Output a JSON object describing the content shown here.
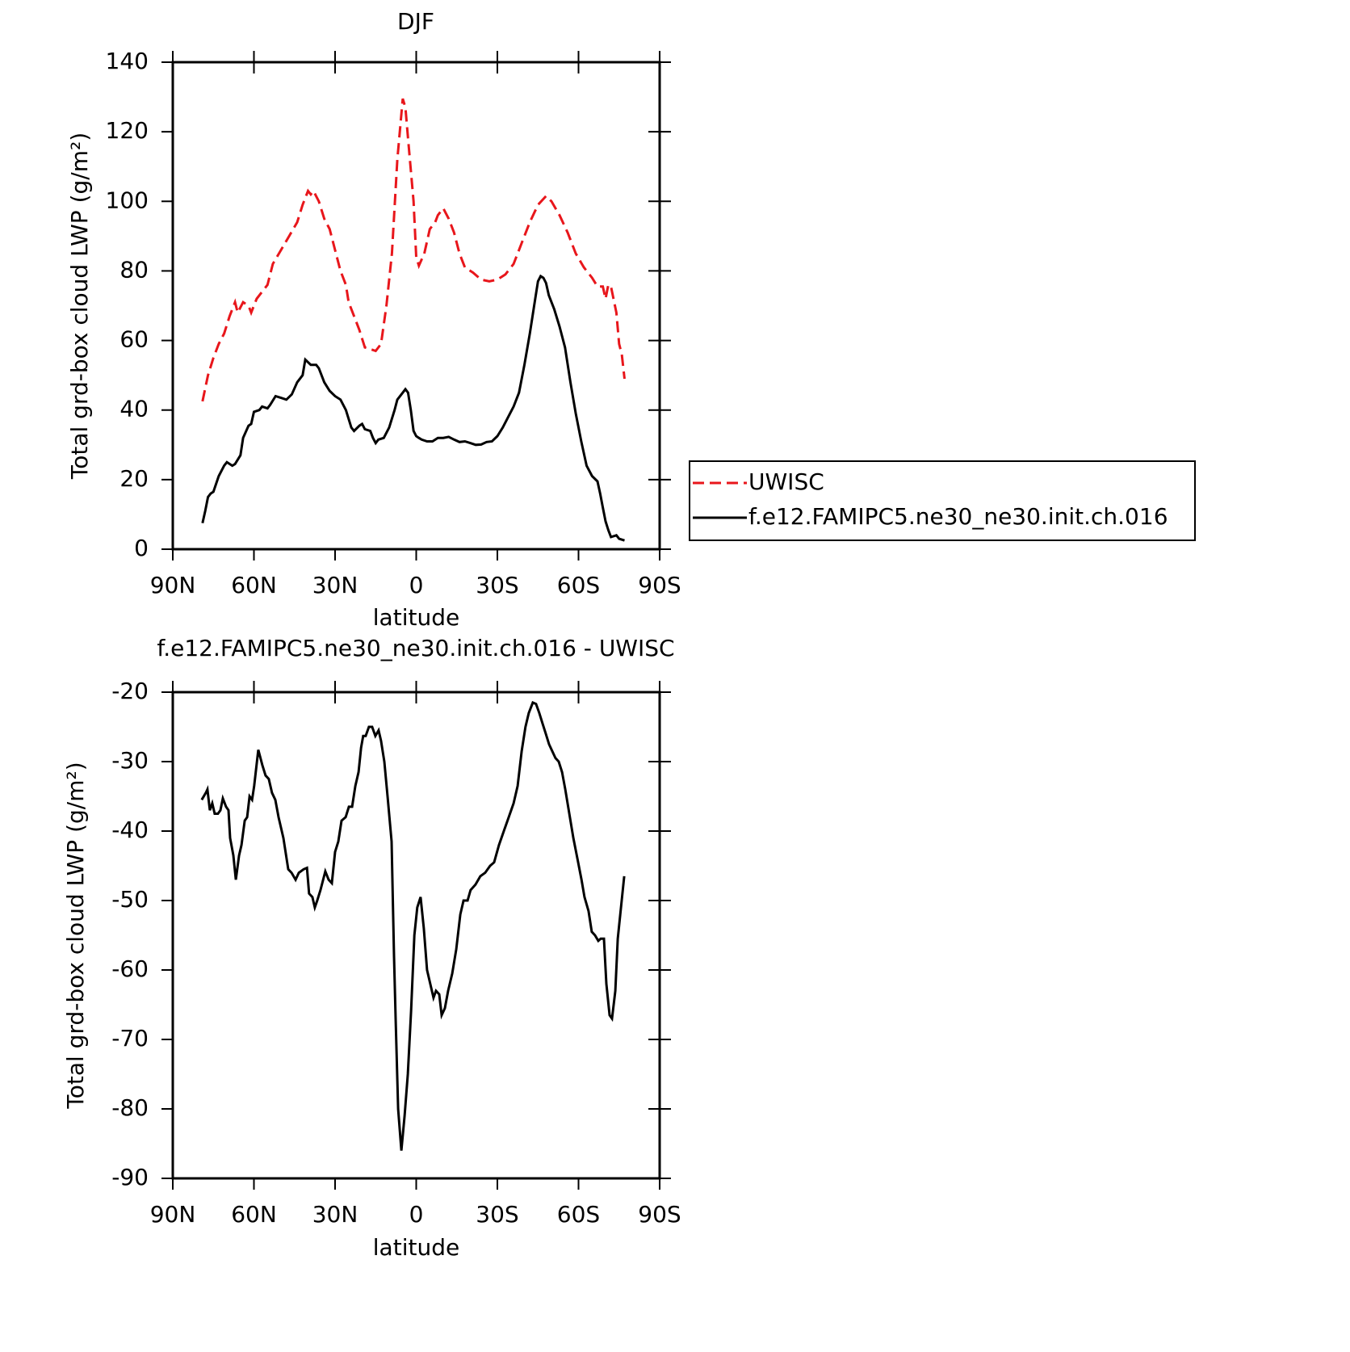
{
  "chart_data": [
    {
      "type": "line",
      "title": "DJF",
      "x_label": "latitude",
      "y_label": "Total grd-box cloud LWP (g/m²)",
      "xlim": [
        90,
        -90
      ],
      "xticks": [
        {
          "value": 90,
          "label": "90N"
        },
        {
          "value": 60,
          "label": "60N"
        },
        {
          "value": 30,
          "label": "30N"
        },
        0,
        {
          "value": -30,
          "label": "30S"
        },
        {
          "value": -60,
          "label": "60S"
        },
        {
          "value": -90,
          "label": "90S"
        }
      ],
      "ylim": [
        0,
        140
      ],
      "yticks": [
        0,
        20,
        40,
        60,
        80,
        100,
        120,
        140
      ],
      "legend": "right",
      "series": [
        {
          "name": "UWISC",
          "color": "#e8161b",
          "linestyle": "dashed",
          "x": [
            79,
            77,
            75,
            73,
            71,
            69,
            67,
            66,
            64,
            62,
            61,
            59,
            57,
            55,
            53,
            50,
            47,
            44,
            42,
            40,
            39,
            38,
            36,
            34,
            32,
            30,
            28,
            26,
            25,
            23,
            21,
            19,
            17,
            15,
            13,
            11,
            9,
            7,
            5,
            4,
            3,
            1,
            0,
            -1,
            -3,
            -5,
            -7,
            -8,
            -10,
            -12,
            -14,
            -16,
            -18,
            -21,
            -24,
            -27,
            -30,
            -33,
            -36,
            -39,
            -42,
            -45,
            -48,
            -50,
            -53,
            -56,
            -59,
            -62,
            -65,
            -67,
            -69,
            -70,
            -71,
            -72,
            -74,
            -75,
            -76,
            -77
          ],
          "values": [
            42.5,
            50,
            55,
            59,
            62,
            67,
            71,
            68,
            71,
            70,
            68,
            72,
            74,
            76,
            82,
            86,
            90,
            94,
            99,
            103,
            102,
            103,
            100,
            95,
            92,
            86,
            80,
            76,
            71,
            67,
            63,
            58,
            57.5,
            57,
            59,
            70,
            85,
            112,
            129.5,
            127,
            118,
            100,
            84,
            81.5,
            85,
            92,
            94,
            96,
            98,
            95,
            91,
            85,
            81,
            79.5,
            77.5,
            77,
            77.5,
            79,
            82,
            88,
            94,
            99,
            101.5,
            100,
            96,
            91,
            85,
            81,
            78,
            75.5,
            75.5,
            72,
            76,
            75.5,
            68,
            59,
            56,
            49
          ]
        },
        {
          "name": "f.e12.FAMIPC5.ne30_ne30.init.ch.016",
          "color": "#000000",
          "linestyle": "solid",
          "x": [
            79,
            78,
            77,
            76,
            75,
            73,
            71,
            70,
            68,
            67,
            65,
            64,
            62,
            61,
            60,
            58,
            57,
            55,
            54,
            52,
            50,
            48,
            46,
            44,
            42,
            41,
            39,
            37,
            36,
            34,
            32,
            30,
            28,
            26,
            24,
            23,
            21,
            20,
            19,
            17,
            16,
            15,
            14,
            12,
            10,
            8,
            7,
            5,
            4,
            3,
            2,
            1,
            0,
            -1,
            -2,
            -4,
            -6,
            -8,
            -10,
            -12,
            -14,
            -16,
            -18,
            -20,
            -22,
            -24,
            -26,
            -28,
            -30,
            -32,
            -34,
            -36,
            -38,
            -40,
            -42,
            -44,
            -45,
            -46,
            -47,
            -48,
            -49,
            -51,
            -53,
            -55,
            -57,
            -59,
            -61,
            -63,
            -65,
            -67,
            -68,
            -69,
            -70,
            -71,
            -72,
            -74,
            -75,
            -77
          ],
          "values": [
            7.5,
            11,
            15,
            16,
            16.5,
            21,
            24,
            25,
            24,
            24.5,
            27,
            32,
            35.5,
            36,
            39.5,
            40,
            41,
            40.5,
            41.5,
            44,
            43.5,
            43,
            44.5,
            48,
            50,
            54.5,
            53,
            53,
            52,
            48,
            45.5,
            44,
            43,
            40,
            35,
            34,
            35.5,
            36,
            34.5,
            34,
            32,
            30.5,
            31.5,
            32,
            35,
            40,
            43,
            45,
            46,
            45,
            40,
            34,
            32.5,
            32,
            31.5,
            31,
            31,
            32,
            32,
            32.3,
            31.5,
            30.8,
            31,
            30.5,
            30,
            30.1,
            30.8,
            31,
            32.5,
            35,
            38,
            41,
            45,
            53,
            62,
            72,
            77,
            78.5,
            78,
            76.5,
            73,
            69,
            64,
            58,
            48,
            39,
            31,
            24,
            21,
            19.5,
            16,
            12,
            8,
            5.5,
            3.5,
            4,
            3,
            2.5
          ]
        }
      ]
    },
    {
      "type": "line",
      "title": "f.e12.FAMIPC5.ne30_ne30.init.ch.016 - UWISC",
      "x_label": "latitude",
      "y_label": "Total grd-box cloud LWP (g/m²)",
      "xlim": [
        90,
        -90
      ],
      "xticks": [
        {
          "value": 90,
          "label": "90N"
        },
        {
          "value": 60,
          "label": "60N"
        },
        {
          "value": 30,
          "label": "30N"
        },
        0,
        {
          "value": -30,
          "label": "30S"
        },
        {
          "value": -60,
          "label": "60S"
        },
        {
          "value": -90,
          "label": "90S"
        }
      ],
      "ylim": [
        -90,
        -20
      ],
      "yticks": [
        -90,
        -80,
        -70,
        -60,
        -50,
        -40,
        -30,
        -20
      ],
      "series": [
        {
          "color": "#000000",
          "linestyle": "solid",
          "x": [
            79.3,
            77.8,
            77.2,
            76.3,
            75.4,
            74.5,
            73.3,
            72.4,
            71.5,
            70.3,
            69.4,
            68.8,
            67.6,
            66.7,
            65.5,
            64.6,
            63.4,
            62.5,
            61.6,
            60.7,
            59.9,
            58.4,
            56.9,
            55.7,
            54.5,
            53.3,
            52.1,
            50.9,
            49.1,
            47.3,
            46.1,
            44.6,
            43.4,
            41.6,
            40.4,
            39.6,
            38.4,
            37.5,
            36.6,
            35.4,
            33.6,
            32.4,
            31.2,
            30,
            28.8,
            27.6,
            26.1,
            24.9,
            23.7,
            22.5,
            21.3,
            20.4,
            19.6,
            18.7,
            17.5,
            16.3,
            15.1,
            13.9,
            13,
            11.8,
            10.6,
            9.1,
            8.2,
            7.6,
            6.7,
            5.5,
            4.3,
            3.1,
            1.9,
            0.7,
            -0.4,
            -1.6,
            -2.8,
            -4,
            -5.2,
            -6.4,
            -7.3,
            -8.5,
            -9.4,
            -10.6,
            -11.8,
            -13.3,
            -14.8,
            -16.3,
            -17.5,
            -19,
            -20.1,
            -21.9,
            -23.7,
            -25.5,
            -27.3,
            -28.8,
            -30.6,
            -32.4,
            -34.2,
            -36,
            -37.5,
            -39,
            -40.4,
            -41.6,
            -43.1,
            -44.3,
            -45.5,
            -46.7,
            -47.9,
            -49.1,
            -50.3,
            -51.5,
            -52.7,
            -53.9,
            -55.1,
            -56.6,
            -58.1,
            -59.6,
            -61.1,
            -62.2,
            -63.7,
            -64.9,
            -66.1,
            -67.3,
            -68.2,
            -69.4,
            -70.3,
            -71.5,
            -72.4,
            -73.6,
            -74.5,
            -75.7,
            -76.9
          ],
          "values": [
            -35.5,
            -34.5,
            -34,
            -37,
            -36,
            -37.5,
            -37.5,
            -37,
            -35.3,
            -36.5,
            -37,
            -41,
            -43.5,
            -47,
            -43.5,
            -42,
            -38.5,
            -38,
            -35,
            -35.5,
            -33.5,
            -28.3,
            -30.5,
            -32,
            -32.5,
            -34.5,
            -35.5,
            -38,
            -41,
            -45.5,
            -46,
            -47,
            -46,
            -45.5,
            -45.3,
            -49,
            -49.5,
            -51,
            -50,
            -48.5,
            -45.8,
            -47,
            -47.5,
            -43,
            -41.5,
            -38.5,
            -38,
            -36.5,
            -36.5,
            -33.5,
            -31.5,
            -28,
            -26.3,
            -26.3,
            -25,
            -25,
            -26.3,
            -25.5,
            -27,
            -30,
            -35,
            -41.5,
            -58,
            -67,
            -80,
            -86,
            -81,
            -75,
            -66,
            -55,
            -51,
            -49.5,
            -54,
            -60,
            -62,
            -64,
            -63,
            -63.5,
            -66.5,
            -65.5,
            -63,
            -60.5,
            -57,
            -52,
            -50,
            -50,
            -48.5,
            -47.7,
            -46.5,
            -46,
            -45,
            -44.5,
            -42,
            -40,
            -38,
            -36,
            -33.5,
            -28.5,
            -25,
            -23,
            -21.5,
            -21.7,
            -23,
            -24.5,
            -26,
            -27.5,
            -28.5,
            -29.5,
            -30,
            -31.5,
            -34,
            -37.5,
            -41,
            -44,
            -47,
            -49.5,
            -51.5,
            -54.5,
            -55,
            -55.8,
            -55.5,
            -55.5,
            -62,
            -66.5,
            -67,
            -63,
            -55.5,
            -51,
            -46.5
          ]
        }
      ]
    }
  ]
}
